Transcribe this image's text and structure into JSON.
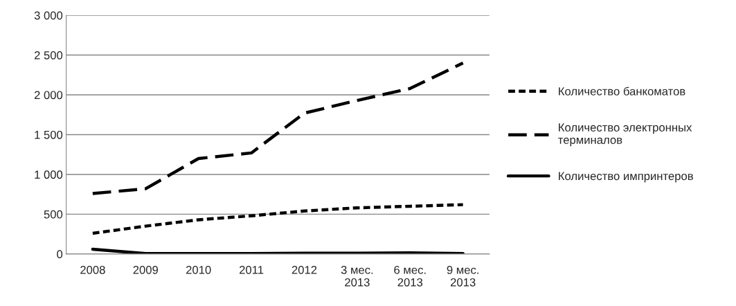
{
  "chart_data": {
    "type": "line",
    "categories": [
      "2008",
      "2009",
      "2010",
      "2011",
      "2012",
      "3 мес.\n2013",
      "6 мес.\n2013",
      "9 мес.\n2013"
    ],
    "series": [
      {
        "name": "Количество банкоматов",
        "color": "#000000",
        "line_style": "dotted",
        "values": [
          260,
          350,
          430,
          480,
          540,
          580,
          600,
          620
        ]
      },
      {
        "name": "Количество электронных\nтерминалов",
        "color": "#000000",
        "line_style": "dashed",
        "values": [
          760,
          820,
          1200,
          1270,
          1770,
          1930,
          2080,
          2400
        ]
      },
      {
        "name": "Количество импринтеров",
        "color": "#000000",
        "line_style": "solid",
        "values": [
          60,
          5,
          5,
          5,
          10,
          10,
          15,
          5
        ]
      }
    ],
    "ylim": [
      0,
      3000
    ],
    "yticks": [
      0,
      500,
      {
        "value": 1000,
        "label": "1 000"
      },
      {
        "value": 1500,
        "label": "1 500"
      },
      {
        "value": 2000,
        "label": "2 000"
      },
      {
        "value": 2500,
        "label": "2 500"
      },
      {
        "value": 3000,
        "label": "3 000"
      }
    ],
    "grid": "y",
    "legend": "right",
    "marker": "none"
  }
}
